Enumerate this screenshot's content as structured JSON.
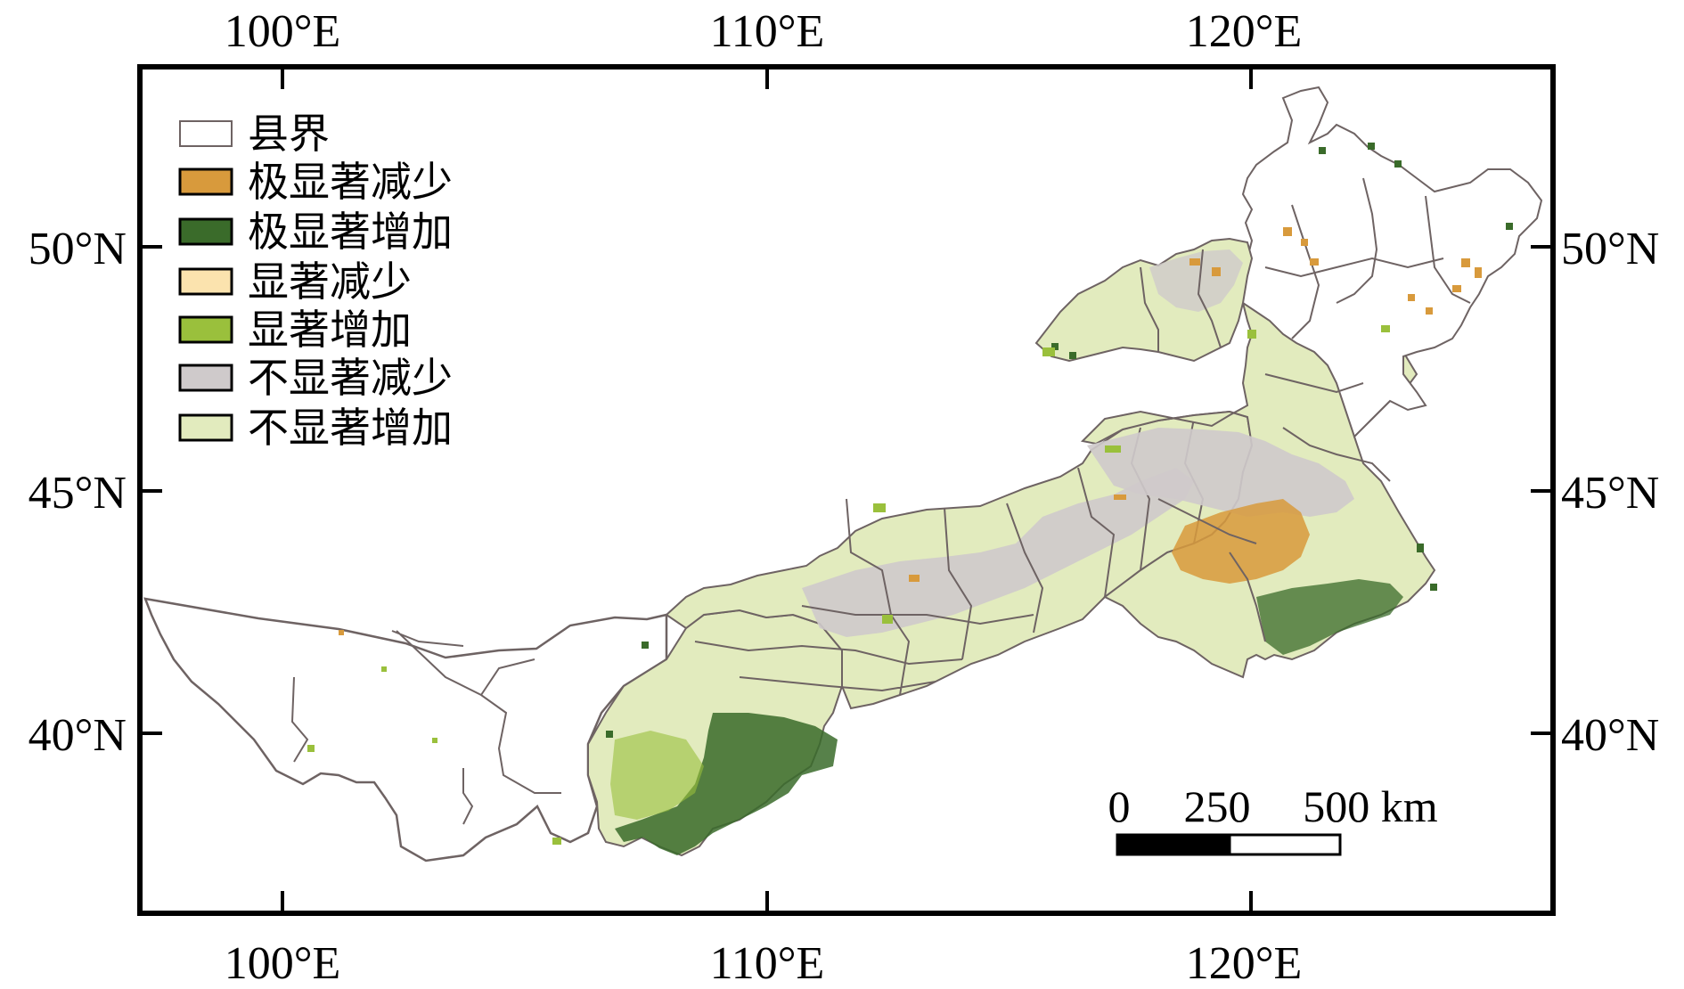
{
  "map": {
    "x_ticks": [
      "100°E",
      "110°E",
      "120°E"
    ],
    "y_ticks": [
      "50°N",
      "45°N",
      "40°N"
    ],
    "legend": [
      {
        "label": "县界",
        "color": "#ffffff"
      },
      {
        "label": "极显著减少",
        "color": "#d89a3c"
      },
      {
        "label": "极显著增加",
        "color": "#3a6b2a"
      },
      {
        "label": "显著减少",
        "color": "#fbe3ae"
      },
      {
        "label": "显著增加",
        "color": "#9ac03c"
      },
      {
        "label": "不显著减少",
        "color": "#cfcacb"
      },
      {
        "label": "不显著增加",
        "color": "#e2ebbe"
      }
    ],
    "scale_bar": {
      "labels": [
        "0",
        "250",
        "500 km"
      ]
    },
    "boundary_color": "#6e6363"
  }
}
